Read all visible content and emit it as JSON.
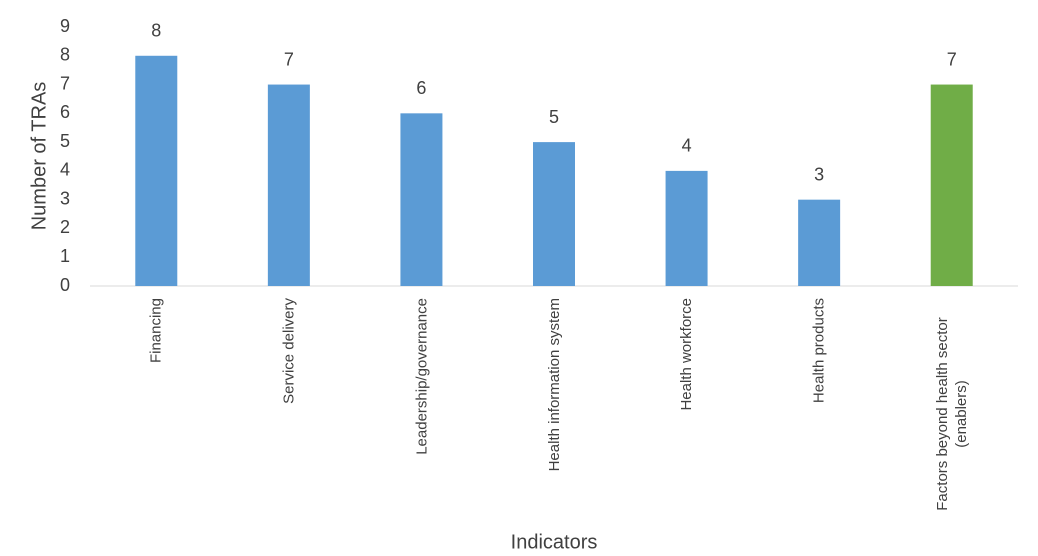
{
  "chart_data": {
    "type": "bar",
    "y_label": "Number of TRAs",
    "x_label": "Indicators",
    "categories": [
      "Financing",
      "Service delivery",
      "Leadership/governance",
      "Health information system",
      "Health workforce",
      "Health products",
      "Factors beyond health sector (enablers)"
    ],
    "values": [
      8,
      7,
      6,
      5,
      4,
      3,
      7
    ],
    "colors": [
      "#5b9bd5",
      "#5b9bd5",
      "#5b9bd5",
      "#5b9bd5",
      "#5b9bd5",
      "#5b9bd5",
      "#70ad47"
    ],
    "ylim": [
      0,
      9
    ],
    "yticks": [
      0,
      1,
      2,
      3,
      4,
      5,
      6,
      7,
      8,
      9
    ],
    "grid": false
  }
}
